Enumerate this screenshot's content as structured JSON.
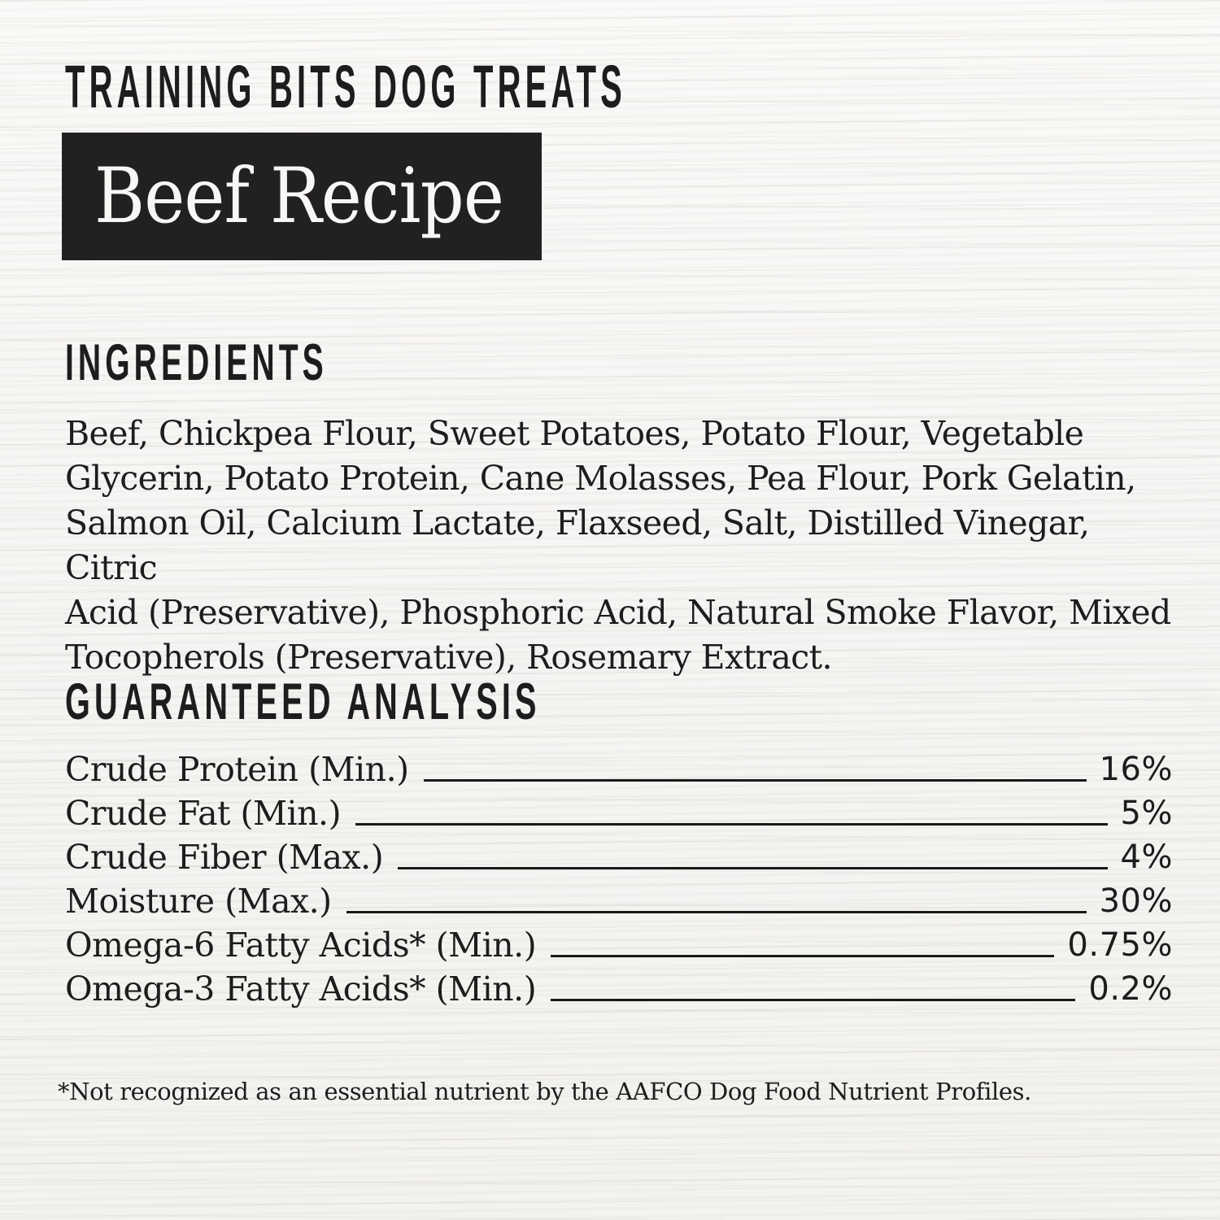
{
  "label": {
    "brand_title": "TRAINING BITS DOG TREATS",
    "recipe_name": "Beef Recipe",
    "ingredients": {
      "heading": "INGREDIENTS",
      "lines": [
        "Beef, Chickpea Flour, Sweet Potatoes, Potato Flour, Vegetable",
        "Glycerin, Potato Protein, Cane Molasses, Pea Flour, Pork Gelatin,",
        "Salmon Oil, Calcium Lactate, Flaxseed, Salt, Distilled Vinegar, Citric",
        "Acid (Preservative), Phosphoric Acid, Natural Smoke Flavor, Mixed",
        "Tocopherols (Preservative), Rosemary Extract."
      ]
    },
    "analysis": {
      "heading": "GUARANTEED ANALYSIS",
      "rows": [
        {
          "label": "Crude Protein (Min.)",
          "value": "16%"
        },
        {
          "label": "Crude Fat (Min.)",
          "value": "5%"
        },
        {
          "label": "Crude Fiber (Max.)",
          "value": "4%"
        },
        {
          "label": "Moisture (Max.)",
          "value": "30%"
        },
        {
          "label": "Omega-6 Fatty Acids* (Min.)",
          "value": "0.75%"
        },
        {
          "label": "Omega-3 Fatty Acids* (Min.)",
          "value": "0.2%"
        }
      ]
    },
    "footnote": "*Not recognized as an essential nutrient by the AAFCO Dog Food Nutrient Profiles.",
    "colors": {
      "ink": "#1e1c1c",
      "badge_bg": "#232021",
      "badge_text": "#f8f7f5",
      "paper": "#f7f6f4"
    }
  }
}
